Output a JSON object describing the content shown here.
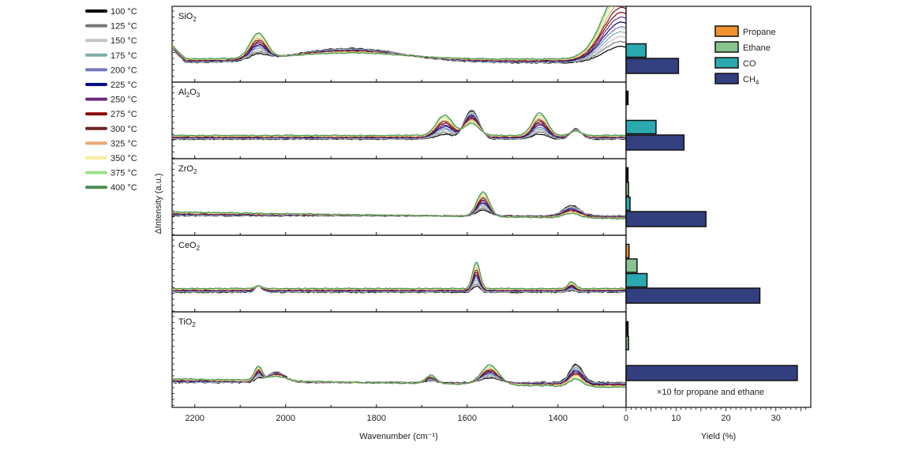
{
  "chart_data": [
    {
      "type": "line",
      "title": "",
      "xlabel": "Wavenumber (cm⁻¹)",
      "ylabel": "ΔIntensity (a.u.)",
      "xlim": [
        2250,
        1250
      ],
      "xticks": [
        "2200",
        "2000",
        "1800",
        "1600",
        "1400"
      ],
      "xtick_values": [
        2200,
        2000,
        1800,
        1600,
        1400
      ],
      "panels": [
        {
          "label": "SiO",
          "sub": "2",
          "features": [
            [
              2060,
              0.55,
              18
            ],
            [
              1860,
              0.35,
              120
            ],
            [
              1260,
              1.6,
              40
            ]
          ]
        },
        {
          "label": "Al",
          "sub": "2",
          "label2": "O",
          "sub2": "3",
          "features": [
            [
              1650,
              0.45,
              18
            ],
            [
              1590,
              0.7,
              16
            ],
            [
              1440,
              0.5,
              16
            ],
            [
              1360,
              0.25,
              12
            ]
          ]
        },
        {
          "label": "ZrO",
          "sub": "2",
          "features": [
            [
              1565,
              0.55,
              14
            ],
            [
              1370,
              0.25,
              18
            ]
          ]
        },
        {
          "label": "CeO",
          "sub": "2",
          "features": [
            [
              1580,
              0.6,
              8
            ],
            [
              2060,
              0.15,
              8
            ],
            [
              1370,
              0.15,
              8
            ]
          ]
        },
        {
          "label": "TiO",
          "sub": "2",
          "features": [
            [
              2060,
              0.25,
              8
            ],
            [
              2020,
              0.2,
              20
            ],
            [
              1550,
              0.35,
              20
            ],
            [
              1360,
              0.35,
              14
            ],
            [
              1680,
              0.15,
              12
            ]
          ]
        }
      ],
      "series": [
        {
          "name": "100 °C",
          "color": "#000000"
        },
        {
          "name": "125 °C",
          "color": "#777777"
        },
        {
          "name": "150 °C",
          "color": "#c4c4c4"
        },
        {
          "name": "175 °C",
          "color": "#7fada8"
        },
        {
          "name": "200 °C",
          "color": "#7777bb"
        },
        {
          "name": "225 °C",
          "color": "#0a0a8c"
        },
        {
          "name": "250 °C",
          "color": "#6b2d7a"
        },
        {
          "name": "275 °C",
          "color": "#8c0a0a"
        },
        {
          "name": "300 °C",
          "color": "#6b2626"
        },
        {
          "name": "325 °C",
          "color": "#e8a878"
        },
        {
          "name": "350 °C",
          "color": "#f7ee9c"
        },
        {
          "name": "375 °C",
          "color": "#9ce08c"
        },
        {
          "name": "400 °C",
          "color": "#4d8c52"
        }
      ]
    },
    {
      "type": "bar",
      "orientation": "horizontal",
      "xlabel": "Yield (%)",
      "xlim": [
        0,
        37
      ],
      "xticks": [
        "0",
        "10",
        "20",
        "30"
      ],
      "xtick_values": [
        0,
        10,
        20,
        30
      ],
      "annotation": "×10 for propane and ethane",
      "categories": [
        "SiO2",
        "Al2O3",
        "ZrO2",
        "CeO2",
        "TiO2"
      ],
      "legend": [
        {
          "name": "Propane",
          "color": "#f0922e"
        },
        {
          "name": "Ethane",
          "color": "#86c38e"
        },
        {
          "name": "CO",
          "color": "#2aa9b0"
        },
        {
          "name": "CH",
          "sub": "4",
          "color": "#33407f"
        }
      ],
      "series": [
        {
          "name": "Propane",
          "values": [
            0,
            0.4,
            0.4,
            0.6,
            0.4
          ]
        },
        {
          "name": "Ethane",
          "values": [
            0,
            0,
            0.5,
            2.2,
            0.5
          ]
        },
        {
          "name": "CO",
          "values": [
            4.0,
            6.0,
            0.8,
            4.2,
            0
          ]
        },
        {
          "name": "CH4",
          "values": [
            10.5,
            11.6,
            16.0,
            26.8,
            34.3
          ]
        }
      ]
    }
  ]
}
